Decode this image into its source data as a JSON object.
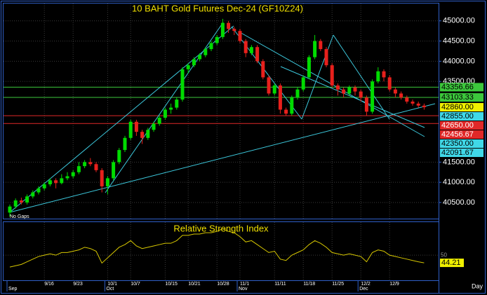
{
  "chart_data": [
    {
      "type": "candlestick",
      "title": "10 BAHT Gold Futures Dec-24 (GF10Z24)",
      "note": "No Gaps",
      "xlabel": "Day",
      "categories": [
        null,
        null,
        null,
        null,
        null,
        null,
        "9/16",
        null,
        null,
        null,
        null,
        "9/23",
        null,
        null,
        null,
        null,
        null,
        "10/1",
        null,
        null,
        null,
        "10/7",
        null,
        null,
        null,
        null,
        null,
        "10/15",
        null,
        null,
        null,
        "10/21",
        null,
        null,
        null,
        null,
        "10/28",
        null,
        null,
        null,
        "11/1",
        null,
        null,
        null,
        null,
        null,
        "11/11",
        null,
        null,
        null,
        null,
        "11/18",
        null,
        null,
        null,
        null,
        "11/25",
        null,
        null,
        null,
        null,
        "12/2",
        null,
        null,
        null,
        null,
        "12/9",
        null,
        null,
        null,
        null,
        null,
        null
      ],
      "month_labels": [
        {
          "value": 0,
          "label": "Sep"
        },
        {
          "value": 17,
          "label": "Oct"
        },
        {
          "value": 40,
          "label": "Nov"
        },
        {
          "value": 61,
          "label": "Dec"
        }
      ],
      "series": [
        {
          "up_color": "#00dc00",
          "down_color": "#e8201c",
          "open": [
            40250,
            40400,
            40550,
            40500,
            40650,
            40750,
            40850,
            40950,
            41050,
            40980,
            41100,
            41150,
            41250,
            41400,
            41500,
            41450,
            41300,
            40900,
            41100,
            41500,
            41800,
            42100,
            42500,
            42250,
            42100,
            42300,
            42450,
            42600,
            42800,
            42850,
            43050,
            43800,
            43900,
            44050,
            44150,
            44300,
            44450,
            44600,
            44950,
            44800,
            44750,
            44500,
            44200,
            44350,
            44000,
            43600,
            43200,
            43400,
            42800,
            42700,
            43100,
            43300,
            43600,
            44100,
            44500,
            44300,
            43900,
            43400,
            43300,
            43200,
            43350,
            43250,
            43100,
            42750,
            43500,
            43750,
            43600,
            43300,
            43200,
            43100,
            43000,
            42950,
            42900
          ],
          "high": [
            40450,
            40600,
            40620,
            40700,
            40800,
            40900,
            41000,
            41100,
            41100,
            41200,
            41250,
            41300,
            41500,
            41550,
            41600,
            41500,
            41350,
            41150,
            41550,
            41850,
            42150,
            42550,
            42550,
            42300,
            42350,
            42500,
            42650,
            42850,
            42950,
            43100,
            43850,
            43950,
            44100,
            44200,
            44350,
            44500,
            44650,
            45050,
            45000,
            44850,
            44800,
            44550,
            44400,
            44400,
            44050,
            43650,
            43450,
            43450,
            42850,
            43150,
            43350,
            43650,
            44150,
            44650,
            44550,
            44350,
            43950,
            43450,
            43350,
            43400,
            43400,
            43300,
            43150,
            43550,
            43850,
            43800,
            43650,
            43350,
            43250,
            43150,
            43050,
            43000,
            42950
          ],
          "low": [
            40150,
            40350,
            40450,
            40450,
            40600,
            40700,
            40800,
            40900,
            40850,
            40950,
            41050,
            41100,
            41200,
            41350,
            41400,
            41250,
            40750,
            40700,
            41050,
            41450,
            41750,
            42050,
            42150,
            41950,
            42050,
            42250,
            42400,
            42550,
            42700,
            42800,
            43000,
            43700,
            43850,
            44000,
            44100,
            44250,
            44400,
            44550,
            44700,
            44650,
            44450,
            44100,
            44150,
            43950,
            43550,
            43150,
            43150,
            42700,
            42650,
            42650,
            43050,
            43250,
            43550,
            44050,
            44250,
            43850,
            43350,
            43150,
            43100,
            43150,
            43150,
            43000,
            42650,
            42700,
            43450,
            43500,
            43250,
            43100,
            43050,
            42950,
            42900,
            42850,
            42800
          ],
          "close": [
            40400,
            40550,
            40500,
            40650,
            40750,
            40850,
            40950,
            41050,
            40980,
            41100,
            41150,
            41250,
            41400,
            41500,
            41450,
            41300,
            40900,
            41100,
            41500,
            41800,
            42100,
            42500,
            42250,
            42100,
            42300,
            42450,
            42600,
            42800,
            42850,
            43050,
            43800,
            43900,
            44050,
            44150,
            44300,
            44450,
            44600,
            44950,
            44800,
            44750,
            44500,
            44200,
            44350,
            44000,
            43600,
            43200,
            43400,
            42800,
            42700,
            43100,
            43300,
            43600,
            44100,
            44500,
            44300,
            43900,
            43400,
            43300,
            43200,
            43350,
            43250,
            43100,
            42750,
            43500,
            43750,
            43600,
            43300,
            43200,
            43100,
            43000,
            42950,
            42900,
            42860
          ]
        }
      ],
      "ylim": [
        40100,
        45430
      ],
      "yticks": [
        {
          "value": 45000,
          "label": "45000.00"
        },
        {
          "value": 44500,
          "label": "44500.00"
        },
        {
          "value": 44000,
          "label": "44000.00"
        },
        {
          "value": 43500,
          "label": "43500.00"
        },
        {
          "value": 41500,
          "label": "41500.00"
        },
        {
          "value": 41000,
          "label": "41000.00"
        },
        {
          "value": 40500,
          "label": "40500.00"
        }
      ],
      "grid": true,
      "levels": [
        {
          "value": 43356.66,
          "label": "43356.66",
          "color": "#3cc83c",
          "text_color": "#000000",
          "line": true
        },
        {
          "value": 43103.33,
          "label": "43103.33",
          "color": "#3cc83c",
          "text_color": "#000000",
          "line": true
        },
        {
          "value": 42860,
          "label": "42860.00",
          "color": "#f0f000",
          "text_color": "#000000",
          "line": false
        },
        {
          "value": 42855,
          "label": "42855.00",
          "color": "#40d8e8",
          "text_color": "#000000",
          "line": false
        },
        {
          "value": 42650,
          "label": "42650.00",
          "color": "#e02828",
          "text_color": "#ffffff",
          "line": true
        },
        {
          "value": 42456.67,
          "label": "42456.67",
          "color": "#e02828",
          "text_color": "#ffffff",
          "line": true
        },
        {
          "value": 42350,
          "label": "42350.00",
          "color": "#40d8e8",
          "text_color": "#000000",
          "line": false
        },
        {
          "value": 42091.67,
          "label": "42091.67",
          "color": "#40d8e8",
          "text_color": "#000000",
          "line": false
        }
      ]
    },
    {
      "type": "line",
      "title": "Relative Strength Index",
      "color": "#d8c800",
      "values": [
        41,
        42,
        43,
        45,
        47,
        49,
        50,
        51,
        50,
        52,
        52,
        53,
        54,
        56,
        55,
        53,
        44,
        48,
        52,
        56,
        58,
        61,
        57,
        55,
        56,
        57,
        58,
        59,
        59,
        61,
        65,
        65,
        66,
        66,
        67,
        67,
        68,
        70,
        68,
        67,
        64,
        60,
        61,
        58,
        55,
        52,
        53,
        47,
        46,
        50,
        52,
        54,
        58,
        61,
        59,
        56,
        52,
        51,
        50,
        51,
        50,
        49,
        45,
        52,
        54,
        53,
        50,
        49,
        48,
        47,
        46,
        45,
        44.21
      ],
      "ylim": [
        31,
        75
      ],
      "yticks": [
        50
      ],
      "grid": true
    }
  ]
}
